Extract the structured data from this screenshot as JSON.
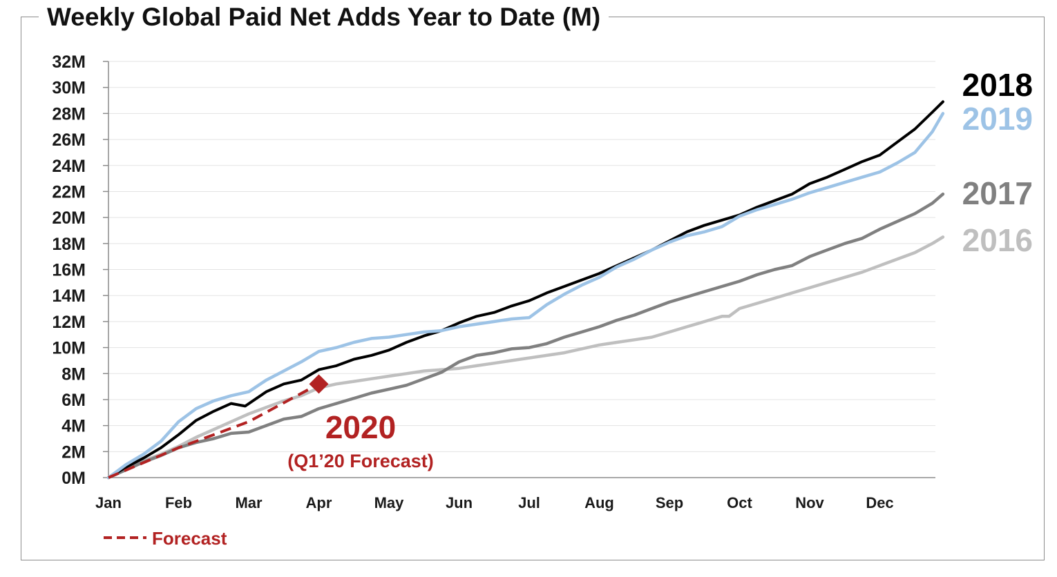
{
  "chart_data": {
    "type": "line",
    "title": "Weekly Global Paid Net Adds Year to Date (M)",
    "xlabel": "",
    "ylabel": "",
    "x_categories": [
      "Jan",
      "Feb",
      "Mar",
      "Apr",
      "May",
      "Jun",
      "Jul",
      "Aug",
      "Sep",
      "Oct",
      "Nov",
      "Dec"
    ],
    "x_range": [
      0,
      11.9
    ],
    "y_ticks": [
      "0M",
      "2M",
      "4M",
      "6M",
      "8M",
      "10M",
      "12M",
      "14M",
      "16M",
      "18M",
      "20M",
      "22M",
      "24M",
      "26M",
      "28M",
      "30M",
      "32M"
    ],
    "ylim": [
      0,
      32
    ],
    "grid": true,
    "series": [
      {
        "name": "2016",
        "color": "#bfbfbf",
        "points": [
          [
            0,
            0
          ],
          [
            0.25,
            0.7
          ],
          [
            0.5,
            1.3
          ],
          [
            0.75,
            1.8
          ],
          [
            1,
            2.4
          ],
          [
            1.25,
            3.1
          ],
          [
            1.5,
            3.7
          ],
          [
            1.75,
            4.3
          ],
          [
            2,
            4.9
          ],
          [
            2.25,
            5.4
          ],
          [
            2.5,
            5.9
          ],
          [
            2.75,
            6.3
          ],
          [
            3,
            6.9
          ],
          [
            3.25,
            7.2
          ],
          [
            3.5,
            7.4
          ],
          [
            3.75,
            7.6
          ],
          [
            4,
            7.8
          ],
          [
            4.25,
            8
          ],
          [
            4.5,
            8.2
          ],
          [
            4.75,
            8.3
          ],
          [
            5,
            8.4
          ],
          [
            5.25,
            8.6
          ],
          [
            5.5,
            8.8
          ],
          [
            5.75,
            9
          ],
          [
            6,
            9.2
          ],
          [
            6.25,
            9.4
          ],
          [
            6.5,
            9.6
          ],
          [
            6.75,
            9.9
          ],
          [
            7,
            10.2
          ],
          [
            7.25,
            10.4
          ],
          [
            7.5,
            10.6
          ],
          [
            7.75,
            10.8
          ],
          [
            8,
            11.2
          ],
          [
            8.25,
            11.6
          ],
          [
            8.5,
            12
          ],
          [
            8.75,
            12.4
          ],
          [
            8.85,
            12.4
          ],
          [
            9,
            13
          ],
          [
            9.25,
            13.4
          ],
          [
            9.5,
            13.8
          ],
          [
            9.75,
            14.2
          ],
          [
            10,
            14.6
          ],
          [
            10.25,
            15
          ],
          [
            10.5,
            15.4
          ],
          [
            10.75,
            15.8
          ],
          [
            11,
            16.3
          ],
          [
            11.25,
            16.8
          ],
          [
            11.5,
            17.3
          ],
          [
            11.75,
            18
          ],
          [
            11.9,
            18.5
          ]
        ]
      },
      {
        "name": "2017",
        "color": "#808080",
        "points": [
          [
            0,
            0
          ],
          [
            0.25,
            0.6
          ],
          [
            0.5,
            1.2
          ],
          [
            0.75,
            1.7
          ],
          [
            1,
            2.3
          ],
          [
            1.25,
            2.7
          ],
          [
            1.5,
            3
          ],
          [
            1.75,
            3.4
          ],
          [
            2,
            3.5
          ],
          [
            2.25,
            4
          ],
          [
            2.5,
            4.5
          ],
          [
            2.75,
            4.7
          ],
          [
            3,
            5.3
          ],
          [
            3.25,
            5.7
          ],
          [
            3.5,
            6.1
          ],
          [
            3.75,
            6.5
          ],
          [
            4,
            6.8
          ],
          [
            4.25,
            7.1
          ],
          [
            4.5,
            7.6
          ],
          [
            4.75,
            8.1
          ],
          [
            5,
            8.9
          ],
          [
            5.25,
            9.4
          ],
          [
            5.5,
            9.6
          ],
          [
            5.75,
            9.9
          ],
          [
            6,
            10
          ],
          [
            6.25,
            10.3
          ],
          [
            6.5,
            10.8
          ],
          [
            6.75,
            11.2
          ],
          [
            7,
            11.6
          ],
          [
            7.25,
            12.1
          ],
          [
            7.5,
            12.5
          ],
          [
            7.75,
            13
          ],
          [
            8,
            13.5
          ],
          [
            8.25,
            13.9
          ],
          [
            8.5,
            14.3
          ],
          [
            8.75,
            14.7
          ],
          [
            9,
            15.1
          ],
          [
            9.25,
            15.6
          ],
          [
            9.5,
            16
          ],
          [
            9.75,
            16.3
          ],
          [
            10,
            17
          ],
          [
            10.25,
            17.5
          ],
          [
            10.5,
            18
          ],
          [
            10.75,
            18.4
          ],
          [
            11,
            19.1
          ],
          [
            11.25,
            19.7
          ],
          [
            11.5,
            20.3
          ],
          [
            11.75,
            21.1
          ],
          [
            11.9,
            21.8
          ]
        ]
      },
      {
        "name": "2018",
        "color": "#000000",
        "points": [
          [
            0,
            0
          ],
          [
            0.25,
            0.8
          ],
          [
            0.5,
            1.5
          ],
          [
            0.75,
            2.3
          ],
          [
            1,
            3.3
          ],
          [
            1.25,
            4.4
          ],
          [
            1.5,
            5.1
          ],
          [
            1.75,
            5.7
          ],
          [
            1.95,
            5.5
          ],
          [
            2.25,
            6.6
          ],
          [
            2.5,
            7.2
          ],
          [
            2.75,
            7.5
          ],
          [
            3,
            8.3
          ],
          [
            3.25,
            8.6
          ],
          [
            3.5,
            9.1
          ],
          [
            3.75,
            9.4
          ],
          [
            4,
            9.8
          ],
          [
            4.25,
            10.4
          ],
          [
            4.5,
            10.9
          ],
          [
            4.75,
            11.3
          ],
          [
            5,
            11.9
          ],
          [
            5.25,
            12.4
          ],
          [
            5.5,
            12.7
          ],
          [
            5.75,
            13.2
          ],
          [
            6,
            13.6
          ],
          [
            6.25,
            14.2
          ],
          [
            6.5,
            14.7
          ],
          [
            6.75,
            15.2
          ],
          [
            7,
            15.7
          ],
          [
            7.25,
            16.3
          ],
          [
            7.5,
            16.9
          ],
          [
            7.75,
            17.5
          ],
          [
            8,
            18.2
          ],
          [
            8.25,
            18.9
          ],
          [
            8.5,
            19.4
          ],
          [
            8.75,
            19.8
          ],
          [
            9,
            20.2
          ],
          [
            9.25,
            20.8
          ],
          [
            9.5,
            21.3
          ],
          [
            9.75,
            21.8
          ],
          [
            10,
            22.6
          ],
          [
            10.25,
            23.1
          ],
          [
            10.5,
            23.7
          ],
          [
            10.75,
            24.3
          ],
          [
            11,
            24.8
          ],
          [
            11.25,
            25.8
          ],
          [
            11.5,
            26.8
          ],
          [
            11.75,
            28.1
          ],
          [
            11.9,
            28.9
          ]
        ]
      },
      {
        "name": "2019",
        "color": "#9dc3e6",
        "points": [
          [
            0,
            0
          ],
          [
            0.25,
            1
          ],
          [
            0.5,
            1.8
          ],
          [
            0.75,
            2.8
          ],
          [
            1,
            4.3
          ],
          [
            1.25,
            5.3
          ],
          [
            1.5,
            5.9
          ],
          [
            1.75,
            6.3
          ],
          [
            2,
            6.6
          ],
          [
            2.25,
            7.5
          ],
          [
            2.5,
            8.2
          ],
          [
            2.75,
            8.9
          ],
          [
            3,
            9.7
          ],
          [
            3.25,
            10
          ],
          [
            3.5,
            10.4
          ],
          [
            3.75,
            10.7
          ],
          [
            4,
            10.8
          ],
          [
            4.25,
            11
          ],
          [
            4.5,
            11.2
          ],
          [
            4.75,
            11.3
          ],
          [
            5,
            11.6
          ],
          [
            5.25,
            11.8
          ],
          [
            5.5,
            12
          ],
          [
            5.75,
            12.2
          ],
          [
            6,
            12.3
          ],
          [
            6.25,
            13.3
          ],
          [
            6.5,
            14.1
          ],
          [
            6.75,
            14.8
          ],
          [
            7,
            15.4
          ],
          [
            7.25,
            16.2
          ],
          [
            7.5,
            16.8
          ],
          [
            7.75,
            17.5
          ],
          [
            8,
            18.1
          ],
          [
            8.25,
            18.6
          ],
          [
            8.5,
            18.9
          ],
          [
            8.75,
            19.3
          ],
          [
            9,
            20.1
          ],
          [
            9.25,
            20.6
          ],
          [
            9.5,
            21
          ],
          [
            9.75,
            21.4
          ],
          [
            10,
            21.9
          ],
          [
            10.25,
            22.3
          ],
          [
            10.5,
            22.7
          ],
          [
            10.75,
            23.1
          ],
          [
            11,
            23.5
          ],
          [
            11.25,
            24.2
          ],
          [
            11.5,
            25
          ],
          [
            11.75,
            26.6
          ],
          [
            11.9,
            28
          ]
        ]
      }
    ],
    "forecast": {
      "name": "Forecast",
      "color": "#b22222",
      "points": [
        [
          0,
          0
        ],
        [
          1,
          2.3
        ],
        [
          2,
          4.3
        ],
        [
          3,
          7.2
        ]
      ],
      "marker": [
        3,
        7.2
      ],
      "annotation_main": "2020",
      "annotation_sub": "(Q1’20 Forecast)"
    },
    "legend": {
      "placement": "bottom-left",
      "entries": [
        "Forecast"
      ]
    },
    "end_labels": [
      "2018",
      "2019",
      "2017",
      "2016"
    ]
  }
}
